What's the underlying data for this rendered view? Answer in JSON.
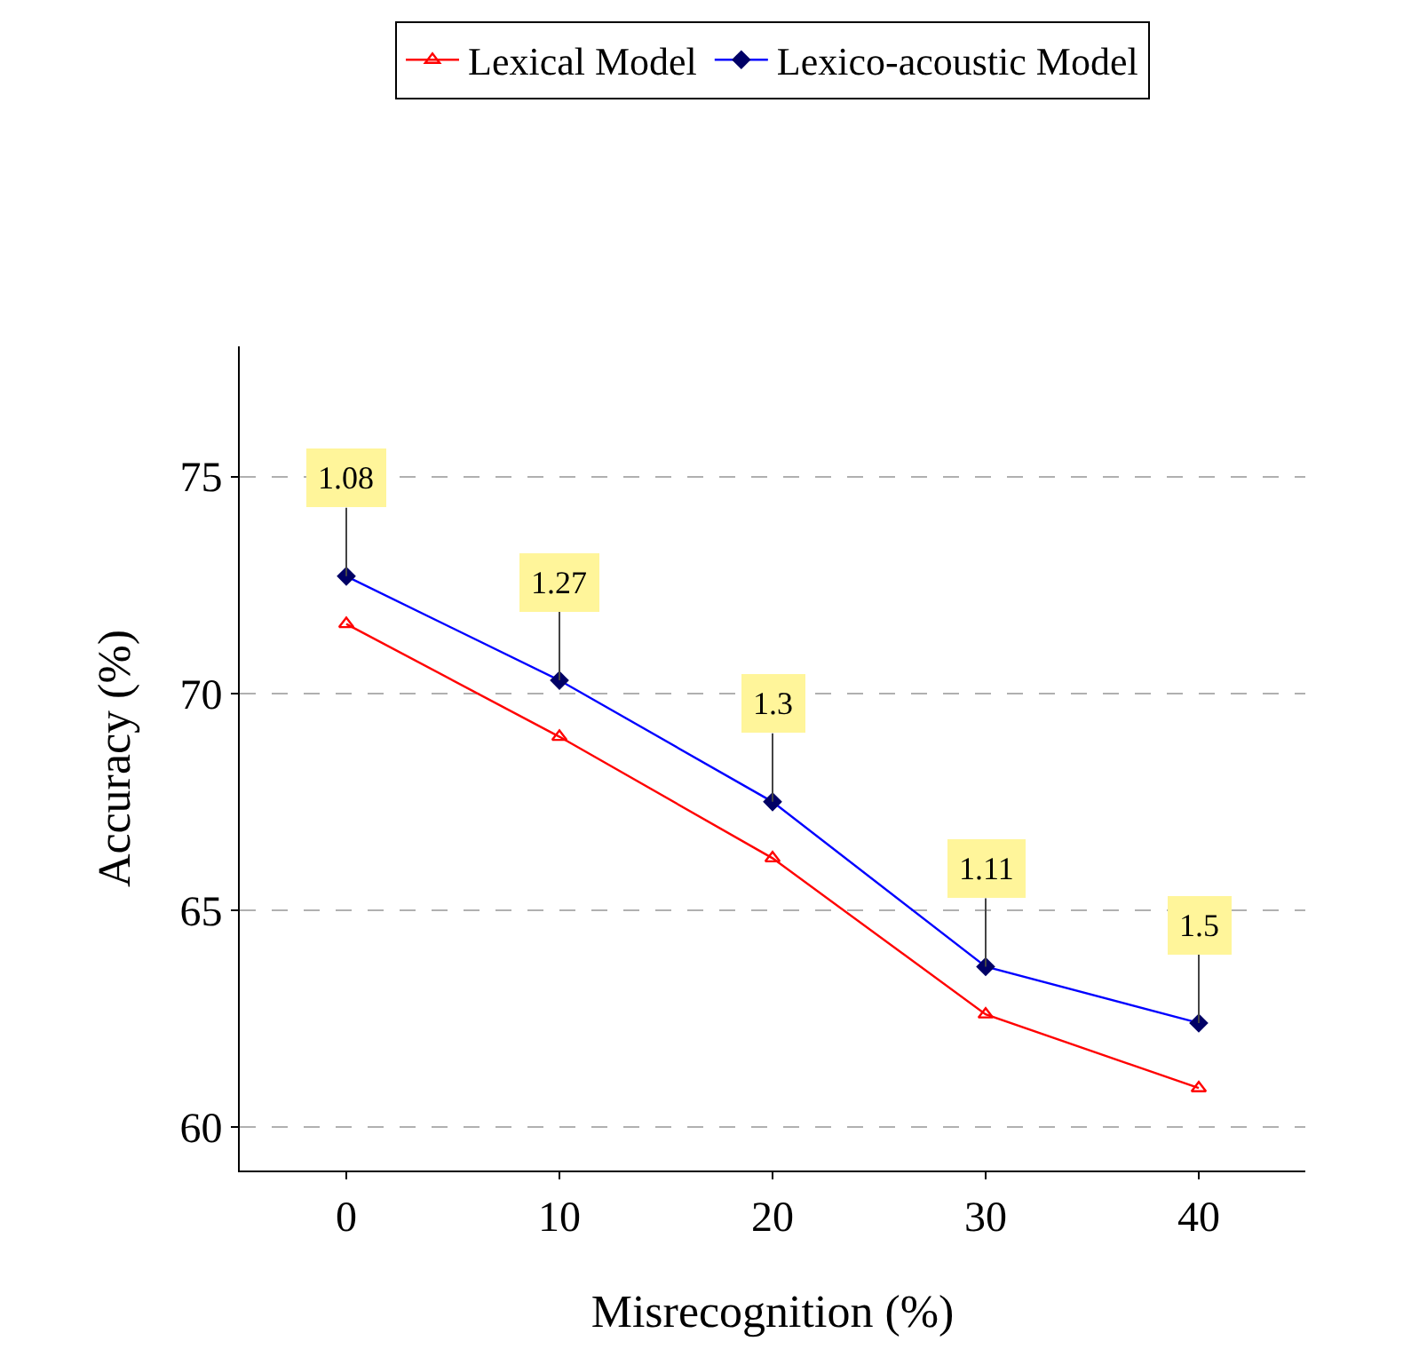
{
  "chart_data": {
    "type": "line",
    "xlabel": "Misrecognition (%)",
    "ylabel": "Accuracy (%)",
    "x": [
      0,
      10,
      20,
      30,
      40
    ],
    "series": [
      {
        "name": "Lexical Model",
        "color": "#ff0000",
        "marker": "triangle",
        "values": [
          71.6,
          69.0,
          66.2,
          62.6,
          60.9
        ]
      },
      {
        "name": "Lexico-acoustic Model",
        "color": "#0000ff",
        "marker": "diamond",
        "values": [
          72.7,
          70.3,
          67.5,
          63.7,
          62.4
        ]
      }
    ],
    "annotations": [
      {
        "text": "1.08",
        "x": 0,
        "y": 72.7
      },
      {
        "text": "1.27",
        "x": 10,
        "y": 70.3
      },
      {
        "text": "1.3",
        "x": 20,
        "y": 67.5
      },
      {
        "text": "1.11",
        "x": 30,
        "y": 63.7
      },
      {
        "text": "1.5",
        "x": 40,
        "y": 62.4
      }
    ],
    "xlim": [
      -5,
      45
    ],
    "xticks": [
      0,
      10,
      20,
      30,
      40
    ],
    "ylim": [
      59,
      78
    ],
    "yticks": [
      60,
      65,
      70,
      75
    ],
    "grid": "y",
    "legend": "top",
    "line_style": "solid"
  }
}
